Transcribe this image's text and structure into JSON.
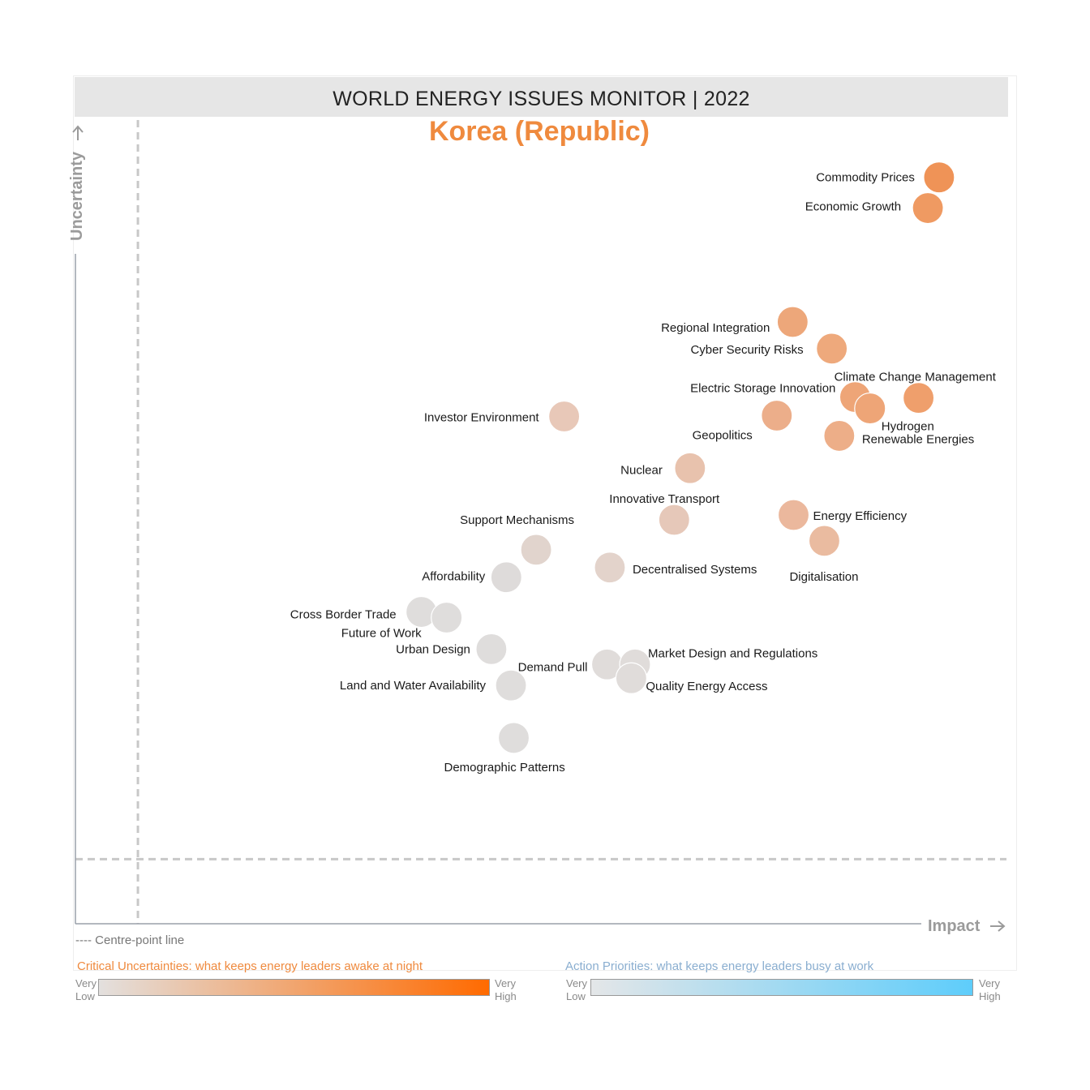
{
  "header": {
    "title": "WORLD ENERGY ISSUES MONITOR | 2022",
    "country": "Korea (Republic)"
  },
  "chart_data": {
    "type": "scatter",
    "title": "WORLD ENERGY ISSUES MONITOR | 2022",
    "subtitle": "Korea (Republic)",
    "xlabel": "Impact",
    "ylabel": "Uncertainty",
    "points": [
      {
        "label": "Commodity Prices",
        "x": 0.926,
        "y": 0.924,
        "color": "#ef9357"
      },
      {
        "label": "Economic Growth",
        "x": 0.914,
        "y": 0.886,
        "color": "#ef9a62"
      },
      {
        "label": "Regional Integration",
        "x": 0.769,
        "y": 0.745,
        "color": "#eda77a"
      },
      {
        "label": "Cyber Security Risks",
        "x": 0.811,
        "y": 0.712,
        "color": "#eea97c"
      },
      {
        "label": "Climate Change Management",
        "x": 0.904,
        "y": 0.651,
        "color": "#ef9f6c"
      },
      {
        "label": "Electric Storage Innovation",
        "x": 0.836,
        "y": 0.652,
        "color": "#eea577"
      },
      {
        "label": "Hydrogen",
        "x": 0.852,
        "y": 0.638,
        "color": "#eea577"
      },
      {
        "label": "Investor Environment",
        "x": 0.524,
        "y": 0.628,
        "color": "#e8c8b8"
      },
      {
        "label": "Geopolitics",
        "x": 0.752,
        "y": 0.629,
        "color": "#ecae8a"
      },
      {
        "label": "Renewable Energies",
        "x": 0.819,
        "y": 0.604,
        "color": "#edae88"
      },
      {
        "label": "Nuclear",
        "x": 0.659,
        "y": 0.564,
        "color": "#e8c2ad"
      },
      {
        "label": "Innovative Transport",
        "x": 0.642,
        "y": 0.5,
        "color": "#e6c8b9"
      },
      {
        "label": "Energy Efficiency",
        "x": 0.77,
        "y": 0.506,
        "color": "#ebb89d"
      },
      {
        "label": "Digitalisation",
        "x": 0.803,
        "y": 0.474,
        "color": "#eabba0"
      },
      {
        "label": "Support Mechanisms",
        "x": 0.494,
        "y": 0.463,
        "color": "#e1d4cd"
      },
      {
        "label": "Decentralised Systems",
        "x": 0.573,
        "y": 0.441,
        "color": "#e3d3cb"
      },
      {
        "label": "Affordability",
        "x": 0.462,
        "y": 0.429,
        "color": "#dedbda"
      },
      {
        "label": "Cross Border Trade",
        "x": 0.371,
        "y": 0.386,
        "color": "#dfdddc"
      },
      {
        "label": "Future of Work",
        "x": 0.398,
        "y": 0.379,
        "color": "#dfdddc"
      },
      {
        "label": "Urban Design",
        "x": 0.446,
        "y": 0.34,
        "color": "#dfdddc"
      },
      {
        "label": "Demand Pull",
        "x": 0.57,
        "y": 0.321,
        "color": "#e0dcda"
      },
      {
        "label": "Market Design and Regulations",
        "x": 0.6,
        "y": 0.321,
        "color": "#e0dcda"
      },
      {
        "label": "Quality Energy Access",
        "x": 0.596,
        "y": 0.304,
        "color": "#e0dcda"
      },
      {
        "label": "Land and Water Availability",
        "x": 0.467,
        "y": 0.295,
        "color": "#dfdddc"
      },
      {
        "label": "Demographic Patterns",
        "x": 0.47,
        "y": 0.23,
        "color": "#dfdddc"
      }
    ],
    "centre_point": {
      "x": 0.067,
      "y": 0.08
    },
    "xlim": [
      0,
      1
    ],
    "ylim": [
      0,
      1
    ],
    "grid": false
  },
  "footer": {
    "centre_note": "---- Centre-point line",
    "critical_title": "Critical Uncertainties: what keeps energy leaders awake at night",
    "action_title": "Action Priorities: what keeps energy leaders busy at work",
    "very": "Very",
    "low": "Low",
    "high": "High",
    "critical_colors": [
      "#e3e0de",
      "#ff6a00"
    ],
    "action_colors": [
      "#e4e6e8",
      "#5ecdfb"
    ]
  }
}
